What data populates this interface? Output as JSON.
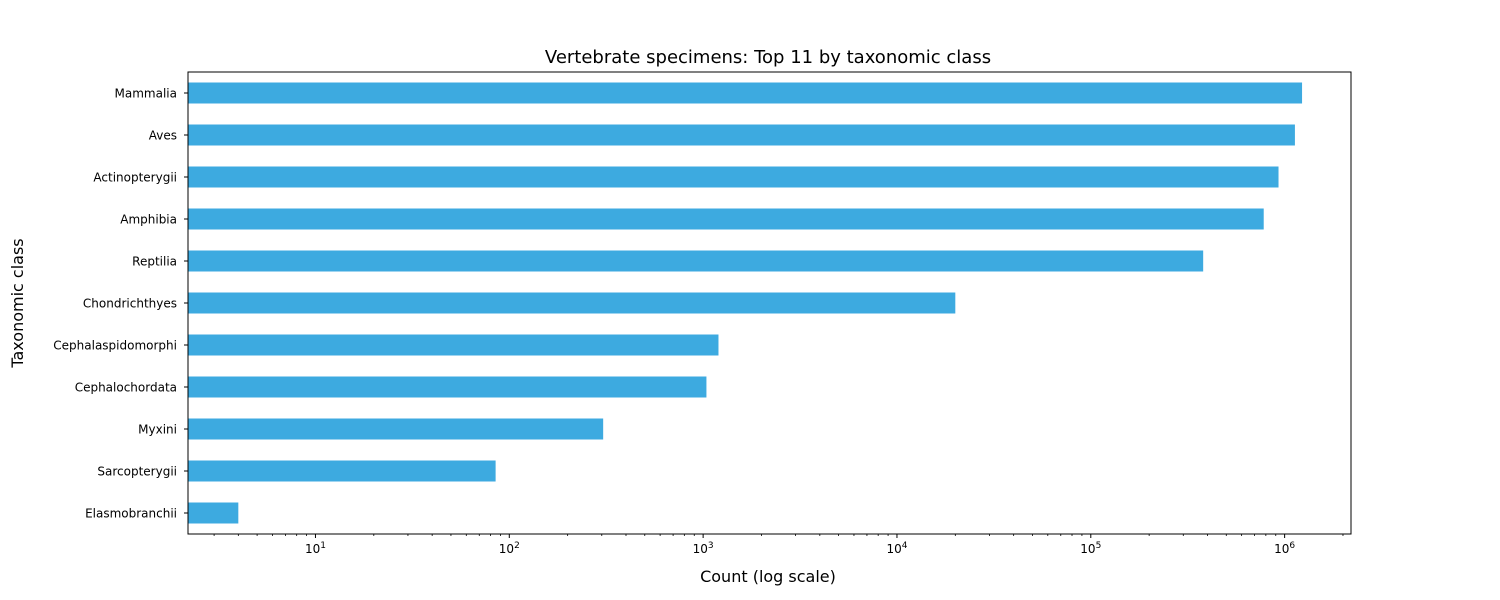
{
  "chart_data": {
    "type": "bar",
    "orientation": "horizontal",
    "title": "Vertebrate specimens: Top 11 by taxonomic class",
    "xlabel": "Count (log scale)",
    "ylabel": "Taxonomic class",
    "x_scale": "log",
    "xlim": [
      2.2,
      2200000
    ],
    "x_ticks": [
      10,
      100,
      1000,
      10000,
      100000,
      1000000
    ],
    "grid": false,
    "bar_color": "#3daae0",
    "categories": [
      "Mammalia",
      "Aves",
      "Actinopterygii",
      "Amphibia",
      "Reptilia",
      "Chondrichthyes",
      "Cephalaspidomorphi",
      "Cephalochordata",
      "Myxini",
      "Sarcopterygii",
      "Elasmobranchii"
    ],
    "values": [
      1230000,
      1130000,
      930000,
      780000,
      380000,
      20000,
      1200,
      1040,
      305,
      85,
      4
    ]
  }
}
